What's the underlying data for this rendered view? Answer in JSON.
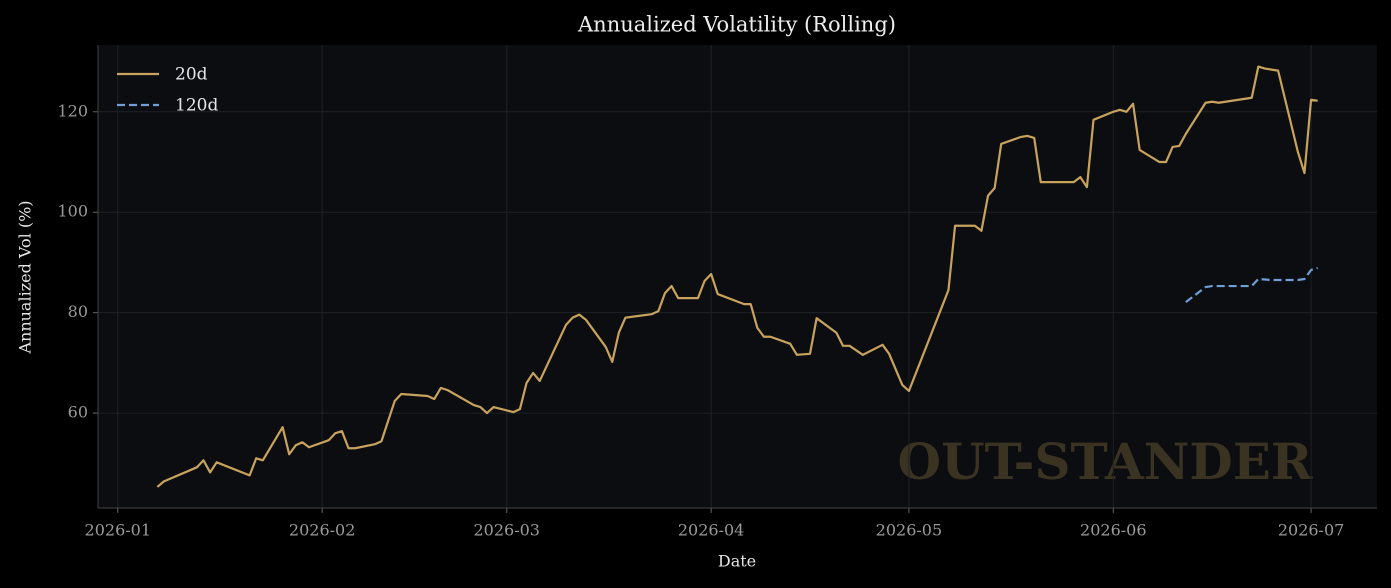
{
  "chart_data": {
    "type": "line",
    "title": "Annualized Volatility (Rolling)",
    "xlabel": "Date",
    "ylabel": "Annualized Vol (%)",
    "annotation": "OUT-STANDER",
    "x": [
      "2026-01-07",
      "2026-01-08",
      "2026-01-13",
      "2026-01-14",
      "2026-01-15",
      "2026-01-16",
      "2026-01-21",
      "2026-01-22",
      "2026-01-23",
      "2026-01-26",
      "2026-01-27",
      "2026-01-28",
      "2026-01-29",
      "2026-01-30",
      "2026-02-02",
      "2026-02-03",
      "2026-02-04",
      "2026-02-05",
      "2026-02-06",
      "2026-02-09",
      "2026-02-10",
      "2026-02-12",
      "2026-02-13",
      "2026-02-17",
      "2026-02-18",
      "2026-02-19",
      "2026-02-20",
      "2026-02-24",
      "2026-02-25",
      "2026-02-26",
      "2026-02-27",
      "2026-03-02",
      "2026-03-03",
      "2026-03-04",
      "2026-03-05",
      "2026-03-06",
      "2026-03-10",
      "2026-03-11",
      "2026-03-12",
      "2026-03-13",
      "2026-03-16",
      "2026-03-17",
      "2026-03-18",
      "2026-03-19",
      "2026-03-23",
      "2026-03-24",
      "2026-03-25",
      "2026-03-26",
      "2026-03-27",
      "2026-03-30",
      "2026-03-31",
      "2026-04-01",
      "2026-04-02",
      "2026-04-06",
      "2026-04-07",
      "2026-04-08",
      "2026-04-09",
      "2026-04-10",
      "2026-04-13",
      "2026-04-14",
      "2026-04-16",
      "2026-04-17",
      "2026-04-20",
      "2026-04-21",
      "2026-04-22",
      "2026-04-24",
      "2026-04-27",
      "2026-04-28",
      "2026-04-30",
      "2026-05-01",
      "2026-05-07",
      "2026-05-08",
      "2026-05-11",
      "2026-05-12",
      "2026-05-13",
      "2026-05-14",
      "2026-05-15",
      "2026-05-18",
      "2026-05-19",
      "2026-05-20",
      "2026-05-21",
      "2026-05-26",
      "2026-05-27",
      "2026-05-28",
      "2026-05-29",
      "2026-06-01",
      "2026-06-02",
      "2026-06-03",
      "2026-06-04",
      "2026-06-05",
      "2026-06-08",
      "2026-06-09",
      "2026-06-10",
      "2026-06-11",
      "2026-06-12",
      "2026-06-15",
      "2026-06-16",
      "2026-06-17",
      "2026-06-18",
      "2026-06-19",
      "2026-06-22",
      "2026-06-23",
      "2026-06-24",
      "2026-06-25",
      "2026-06-26",
      "2026-06-29",
      "2026-06-30",
      "2026-07-01",
      "2026-07-02"
    ],
    "series": [
      {
        "name": "20d",
        "color": "#c9a35c",
        "dash": false,
        "values": [
          45.3,
          46.4,
          49.2,
          50.6,
          48.2,
          50.2,
          47.6,
          51.0,
          50.6,
          57.2,
          51.8,
          53.6,
          54.2,
          53.2,
          54.6,
          56.0,
          56.4,
          53.0,
          53.0,
          53.8,
          54.4,
          62.4,
          63.8,
          63.4,
          62.8,
          65.0,
          64.6,
          61.6,
          61.2,
          60.0,
          61.2,
          60.2,
          60.8,
          66.0,
          68.0,
          66.4,
          77.6,
          79.0,
          79.6,
          78.6,
          73.2,
          70.2,
          76.0,
          79.0,
          79.7,
          80.3,
          83.9,
          85.3,
          82.9,
          82.9,
          86.3,
          87.7,
          83.7,
          81.7,
          81.7,
          77.0,
          75.2,
          75.2,
          73.8,
          71.6,
          71.8,
          78.9,
          76.0,
          73.4,
          73.4,
          71.6,
          73.6,
          71.8,
          65.6,
          64.4,
          84.5,
          97.3,
          97.3,
          96.3,
          103.3,
          104.8,
          113.6,
          115.0,
          115.2,
          114.8,
          106.0,
          106.0,
          107.0,
          105.0,
          118.4,
          120.0,
          120.4,
          120.0,
          121.6,
          112.4,
          110.0,
          110.0,
          113.0,
          113.2,
          115.6,
          121.8,
          122.0,
          121.8,
          122.0,
          122.2,
          122.8,
          129.0,
          128.6,
          128.4,
          128.2,
          112.0,
          107.8,
          122.4,
          122.2
        ]
      },
      {
        "name": "120d",
        "color": "#6f9fd8",
        "dash": true,
        "values": [
          null,
          null,
          null,
          null,
          null,
          null,
          null,
          null,
          null,
          null,
          null,
          null,
          null,
          null,
          null,
          null,
          null,
          null,
          null,
          null,
          null,
          null,
          null,
          null,
          null,
          null,
          null,
          null,
          null,
          null,
          null,
          null,
          null,
          null,
          null,
          null,
          null,
          null,
          null,
          null,
          null,
          null,
          null,
          null,
          null,
          null,
          null,
          null,
          null,
          null,
          null,
          null,
          null,
          null,
          null,
          null,
          null,
          null,
          null,
          null,
          null,
          null,
          null,
          null,
          null,
          null,
          null,
          null,
          null,
          null,
          null,
          null,
          null,
          null,
          null,
          null,
          null,
          null,
          null,
          null,
          null,
          null,
          null,
          null,
          null,
          null,
          null,
          null,
          null,
          null,
          null,
          null,
          null,
          null,
          82.1,
          85.1,
          85.3,
          85.3,
          85.3,
          85.3,
          85.3,
          86.7,
          86.6,
          86.5,
          86.5,
          86.5,
          86.7,
          88.5,
          88.9
        ]
      }
    ],
    "xlim": [
      "2025-12-29",
      "2026-07-11"
    ],
    "xticks": [
      {
        "value": "2026-01-01",
        "label": "2026-01"
      },
      {
        "value": "2026-02-01",
        "label": "2026-02"
      },
      {
        "value": "2026-03-01",
        "label": "2026-03"
      },
      {
        "value": "2026-04-01",
        "label": "2026-04"
      },
      {
        "value": "2026-05-01",
        "label": "2026-05"
      },
      {
        "value": "2026-06-01",
        "label": "2026-06"
      },
      {
        "value": "2026-07-01",
        "label": "2026-07"
      }
    ],
    "ylim": [
      41.1,
      133.3
    ],
    "yticks": [
      60,
      80,
      100,
      120
    ],
    "grid": true,
    "legend": "upper left"
  }
}
